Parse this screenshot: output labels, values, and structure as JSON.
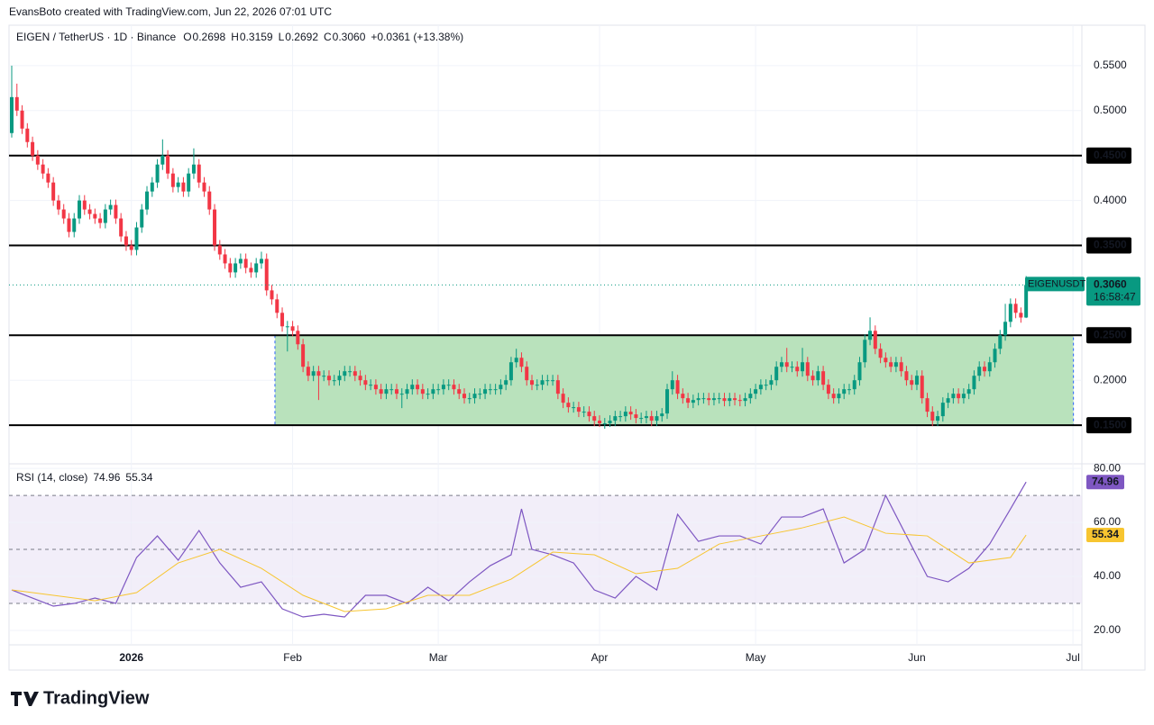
{
  "header": {
    "credit": "EvansBoto created with TradingView.com, Jun 22, 2026 07:01 UTC",
    "brand": "TradingView"
  },
  "chart_data": {
    "type": "candlestick",
    "title": "EIGEN / TetherUS · 1D · Binance",
    "ohlc_legend": [
      {
        "key": "O",
        "value": "0.2698"
      },
      {
        "key": "H",
        "value": "0.3159"
      },
      {
        "key": "L",
        "value": "0.2692"
      },
      {
        "key": "C",
        "value": "0.3060"
      }
    ],
    "change": "+0.0361 (+13.38%)",
    "up_color": "#089981",
    "down_color": "#f23645",
    "xlim": [
      -0.52,
      205.72
    ],
    "xticks": [
      {
        "value": 23,
        "label": "2026"
      },
      {
        "value": 54,
        "label": "Feb"
      },
      {
        "value": 82,
        "label": "Mar"
      },
      {
        "value": 113,
        "label": "Apr"
      },
      {
        "value": 143,
        "label": "May"
      },
      {
        "value": 174,
        "label": "Jun"
      },
      {
        "value": 204,
        "label": "Jul"
      }
    ],
    "ylim": [
      0.107,
      0.595
    ],
    "yticks": [
      {
        "value": 0.55,
        "label": "0.5500"
      },
      {
        "value": 0.5,
        "label": "0.5000"
      },
      {
        "value": 0.4,
        "label": "0.4000"
      },
      {
        "value": 0.2,
        "label": "0.2000"
      }
    ],
    "levels": [
      {
        "value": 0.45,
        "label": "0.4500"
      },
      {
        "value": 0.35,
        "label": "0.3500"
      },
      {
        "value": 0.25,
        "label": "0.2500"
      },
      {
        "value": 0.15,
        "label": "0.1500"
      }
    ],
    "zone": {
      "x": [
        50.6,
        204.1
      ],
      "y": [
        0.15,
        0.25
      ],
      "color": "#b5e0b8"
    },
    "last": {
      "symbol": "EIGENUSDT",
      "price": {
        "value": 0.306,
        "label": "0.3060"
      },
      "countdown": "16:58:47"
    },
    "open": [
      0.475,
      0.515,
      0.5,
      0.48,
      0.465,
      0.45,
      0.44,
      0.43,
      0.42,
      0.4,
      0.39,
      0.38,
      0.365,
      0.38,
      0.4,
      0.39,
      0.385,
      0.38,
      0.375,
      0.39,
      0.395,
      0.38,
      0.36,
      0.35,
      0.345,
      0.37,
      0.39,
      0.41,
      0.42,
      0.44,
      0.45,
      0.43,
      0.415,
      0.42,
      0.41,
      0.43,
      0.44,
      0.42,
      0.41,
      0.39,
      0.35,
      0.34,
      0.33,
      0.32,
      0.33,
      0.335,
      0.325,
      0.32,
      0.33,
      0.335,
      0.3,
      0.29,
      0.275,
      0.26,
      0.26,
      0.255,
      0.24,
      0.215,
      0.205,
      0.21,
      0.205,
      0.205,
      0.2,
      0.2,
      0.205,
      0.21,
      0.21,
      0.205,
      0.2,
      0.195,
      0.195,
      0.19,
      0.185,
      0.19,
      0.19,
      0.185,
      0.185,
      0.19,
      0.195,
      0.19,
      0.185,
      0.185,
      0.19,
      0.19,
      0.195,
      0.195,
      0.19,
      0.185,
      0.18,
      0.18,
      0.185,
      0.185,
      0.19,
      0.19,
      0.19,
      0.195,
      0.2,
      0.22,
      0.225,
      0.215,
      0.2,
      0.195,
      0.195,
      0.2,
      0.2,
      0.2,
      0.185,
      0.175,
      0.17,
      0.17,
      0.165,
      0.165,
      0.16,
      0.155,
      0.152,
      0.152,
      0.155,
      0.16,
      0.16,
      0.165,
      0.162,
      0.158,
      0.158,
      0.16,
      0.155,
      0.16,
      0.163,
      0.19,
      0.2,
      0.185,
      0.18,
      0.175,
      0.178,
      0.18,
      0.18,
      0.178,
      0.18,
      0.18,
      0.177,
      0.18,
      0.178,
      0.177,
      0.18,
      0.185,
      0.19,
      0.195,
      0.195,
      0.2,
      0.215,
      0.22,
      0.215,
      0.215,
      0.21,
      0.22,
      0.205,
      0.2,
      0.21,
      0.195,
      0.185,
      0.18,
      0.185,
      0.19,
      0.19,
      0.2,
      0.22,
      0.245,
      0.255,
      0.235,
      0.225,
      0.22,
      0.215,
      0.22,
      0.21,
      0.2,
      0.195,
      0.205,
      0.18,
      0.165,
      0.155,
      0.16,
      0.175,
      0.18,
      0.185,
      0.18,
      0.185,
      0.19,
      0.205,
      0.215,
      0.21,
      0.22,
      0.235,
      0.25,
      0.265,
      0.285,
      0.275,
      0.2698
    ],
    "high": [
      0.55,
      0.53,
      0.506,
      0.486,
      0.471,
      0.456,
      0.446,
      0.436,
      0.426,
      0.406,
      0.396,
      0.386,
      0.386,
      0.406,
      0.406,
      0.396,
      0.391,
      0.386,
      0.396,
      0.401,
      0.401,
      0.386,
      0.366,
      0.356,
      0.376,
      0.396,
      0.416,
      0.426,
      0.446,
      0.468,
      0.456,
      0.436,
      0.426,
      0.426,
      0.436,
      0.458,
      0.446,
      0.426,
      0.416,
      0.396,
      0.356,
      0.346,
      0.336,
      0.336,
      0.341,
      0.341,
      0.331,
      0.336,
      0.343,
      0.341,
      0.306,
      0.296,
      0.281,
      0.266,
      0.266,
      0.261,
      0.246,
      0.221,
      0.216,
      0.216,
      0.211,
      0.211,
      0.206,
      0.211,
      0.216,
      0.216,
      0.216,
      0.211,
      0.206,
      0.201,
      0.201,
      0.196,
      0.196,
      0.196,
      0.196,
      0.191,
      0.196,
      0.201,
      0.201,
      0.196,
      0.191,
      0.196,
      0.196,
      0.201,
      0.201,
      0.201,
      0.196,
      0.191,
      0.186,
      0.191,
      0.191,
      0.196,
      0.196,
      0.196,
      0.201,
      0.206,
      0.226,
      0.235,
      0.231,
      0.221,
      0.206,
      0.201,
      0.206,
      0.206,
      0.206,
      0.206,
      0.191,
      0.181,
      0.176,
      0.176,
      0.171,
      0.171,
      0.166,
      0.161,
      0.158,
      0.161,
      0.166,
      0.166,
      0.171,
      0.171,
      0.168,
      0.164,
      0.166,
      0.166,
      0.166,
      0.169,
      0.196,
      0.21,
      0.206,
      0.191,
      0.186,
      0.184,
      0.186,
      0.186,
      0.186,
      0.186,
      0.186,
      0.186,
      0.186,
      0.186,
      0.184,
      0.186,
      0.191,
      0.196,
      0.201,
      0.201,
      0.206,
      0.221,
      0.226,
      0.236,
      0.221,
      0.221,
      0.236,
      0.226,
      0.211,
      0.216,
      0.216,
      0.201,
      0.191,
      0.191,
      0.196,
      0.196,
      0.206,
      0.226,
      0.251,
      0.27,
      0.261,
      0.241,
      0.231,
      0.226,
      0.226,
      0.226,
      0.216,
      0.206,
      0.211,
      0.211,
      0.186,
      0.171,
      0.166,
      0.181,
      0.186,
      0.191,
      0.191,
      0.191,
      0.196,
      0.211,
      0.221,
      0.221,
      0.226,
      0.241,
      0.256,
      0.285,
      0.291,
      0.291,
      0.281,
      0.3159
    ],
    "low": [
      0.47,
      0.494,
      0.474,
      0.459,
      0.444,
      0.434,
      0.424,
      0.414,
      0.394,
      0.384,
      0.374,
      0.359,
      0.359,
      0.374,
      0.384,
      0.379,
      0.374,
      0.369,
      0.369,
      0.384,
      0.374,
      0.354,
      0.344,
      0.339,
      0.339,
      0.364,
      0.384,
      0.404,
      0.414,
      0.434,
      0.424,
      0.409,
      0.409,
      0.404,
      0.404,
      0.424,
      0.414,
      0.404,
      0.384,
      0.344,
      0.334,
      0.324,
      0.314,
      0.314,
      0.324,
      0.319,
      0.314,
      0.314,
      0.324,
      0.294,
      0.284,
      0.269,
      0.254,
      0.232,
      0.249,
      0.234,
      0.209,
      0.199,
      0.199,
      0.178,
      0.199,
      0.194,
      0.194,
      0.194,
      0.199,
      0.204,
      0.199,
      0.194,
      0.189,
      0.189,
      0.184,
      0.179,
      0.179,
      0.184,
      0.179,
      0.169,
      0.179,
      0.184,
      0.184,
      0.179,
      0.179,
      0.179,
      0.184,
      0.184,
      0.189,
      0.184,
      0.179,
      0.174,
      0.174,
      0.174,
      0.179,
      0.179,
      0.184,
      0.184,
      0.184,
      0.189,
      0.194,
      0.214,
      0.209,
      0.194,
      0.189,
      0.189,
      0.189,
      0.194,
      0.194,
      0.179,
      0.169,
      0.164,
      0.164,
      0.159,
      0.159,
      0.154,
      0.149,
      0.148,
      0.146,
      0.148,
      0.149,
      0.154,
      0.154,
      0.156,
      0.152,
      0.152,
      0.152,
      0.149,
      0.149,
      0.154,
      0.157,
      0.184,
      0.179,
      0.174,
      0.169,
      0.169,
      0.172,
      0.174,
      0.172,
      0.172,
      0.174,
      0.171,
      0.171,
      0.172,
      0.171,
      0.171,
      0.174,
      0.179,
      0.184,
      0.189,
      0.189,
      0.194,
      0.209,
      0.209,
      0.209,
      0.204,
      0.204,
      0.199,
      0.194,
      0.194,
      0.189,
      0.179,
      0.174,
      0.174,
      0.179,
      0.184,
      0.184,
      0.194,
      0.214,
      0.239,
      0.229,
      0.219,
      0.214,
      0.209,
      0.209,
      0.204,
      0.194,
      0.189,
      0.189,
      0.174,
      0.159,
      0.149,
      0.149,
      0.154,
      0.169,
      0.174,
      0.174,
      0.174,
      0.179,
      0.184,
      0.199,
      0.204,
      0.204,
      0.214,
      0.229,
      0.244,
      0.259,
      0.269,
      0.264,
      0.2692
    ],
    "close": [
      0.515,
      0.5,
      0.48,
      0.465,
      0.45,
      0.44,
      0.43,
      0.42,
      0.4,
      0.39,
      0.38,
      0.365,
      0.38,
      0.4,
      0.39,
      0.385,
      0.38,
      0.375,
      0.39,
      0.395,
      0.38,
      0.36,
      0.35,
      0.345,
      0.37,
      0.39,
      0.41,
      0.42,
      0.44,
      0.45,
      0.43,
      0.415,
      0.42,
      0.41,
      0.43,
      0.44,
      0.42,
      0.41,
      0.39,
      0.35,
      0.34,
      0.33,
      0.32,
      0.33,
      0.335,
      0.325,
      0.32,
      0.33,
      0.335,
      0.3,
      0.29,
      0.275,
      0.26,
      0.26,
      0.255,
      0.24,
      0.215,
      0.205,
      0.21,
      0.205,
      0.205,
      0.2,
      0.2,
      0.205,
      0.21,
      0.21,
      0.205,
      0.2,
      0.195,
      0.195,
      0.19,
      0.185,
      0.19,
      0.19,
      0.185,
      0.185,
      0.19,
      0.195,
      0.19,
      0.185,
      0.185,
      0.19,
      0.19,
      0.195,
      0.195,
      0.19,
      0.185,
      0.18,
      0.18,
      0.185,
      0.185,
      0.19,
      0.19,
      0.19,
      0.195,
      0.2,
      0.22,
      0.225,
      0.215,
      0.2,
      0.195,
      0.195,
      0.2,
      0.2,
      0.2,
      0.185,
      0.175,
      0.17,
      0.17,
      0.165,
      0.165,
      0.16,
      0.155,
      0.152,
      0.152,
      0.155,
      0.16,
      0.16,
      0.165,
      0.162,
      0.158,
      0.158,
      0.16,
      0.155,
      0.16,
      0.163,
      0.19,
      0.2,
      0.185,
      0.18,
      0.175,
      0.178,
      0.18,
      0.18,
      0.178,
      0.18,
      0.18,
      0.177,
      0.18,
      0.178,
      0.177,
      0.18,
      0.185,
      0.19,
      0.195,
      0.195,
      0.2,
      0.215,
      0.22,
      0.215,
      0.215,
      0.21,
      0.22,
      0.205,
      0.2,
      0.21,
      0.195,
      0.185,
      0.18,
      0.185,
      0.19,
      0.19,
      0.2,
      0.22,
      0.245,
      0.255,
      0.235,
      0.225,
      0.22,
      0.215,
      0.22,
      0.21,
      0.2,
      0.195,
      0.205,
      0.18,
      0.165,
      0.155,
      0.16,
      0.175,
      0.18,
      0.185,
      0.18,
      0.185,
      0.19,
      0.205,
      0.215,
      0.21,
      0.22,
      0.235,
      0.25,
      0.265,
      0.285,
      0.275,
      0.2698,
      0.306
    ],
    "rsi": {
      "title": "RSI (14, close)",
      "ylim": [
        15,
        81.7
      ],
      "yticks": [
        {
          "value": 80,
          "label": "80.00"
        },
        {
          "value": 60,
          "label": "60.00"
        },
        {
          "value": 40,
          "label": "40.00"
        },
        {
          "value": 20,
          "label": "20.00"
        }
      ],
      "bands": [
        30,
        50,
        70
      ],
      "band_color": "#ede7f6",
      "series": [
        {
          "color": "#7e57c2",
          "last_label": "74.96",
          "x": [
            0,
            4,
            8,
            12,
            16,
            20,
            24,
            28,
            32,
            36,
            40,
            44,
            48,
            52,
            56,
            60,
            64,
            68,
            72,
            76,
            80,
            84,
            88,
            92,
            96,
            98,
            100,
            104,
            108,
            112,
            116,
            120,
            124,
            128,
            132,
            136,
            140,
            144,
            148,
            152,
            156,
            160,
            164,
            168,
            172,
            176,
            180,
            184,
            188,
            192,
            195
          ],
          "values": [
            35,
            32,
            29,
            30,
            32,
            30,
            47,
            55,
            46,
            57,
            45,
            36,
            38,
            28,
            25,
            26,
            25,
            33,
            33,
            30,
            36,
            31,
            38,
            44,
            48,
            65,
            50,
            48,
            45,
            35,
            32,
            40,
            35,
            63,
            53,
            55,
            55,
            52,
            62,
            62,
            65,
            45,
            50,
            70,
            55,
            40,
            38,
            43,
            52,
            65,
            74.96
          ]
        },
        {
          "color": "#f7c530",
          "last_label": "55.34",
          "x": [
            0,
            8,
            16,
            24,
            32,
            40,
            48,
            56,
            64,
            72,
            80,
            88,
            96,
            104,
            112,
            120,
            128,
            136,
            144,
            152,
            160,
            168,
            176,
            184,
            192,
            195
          ],
          "values": [
            35,
            33,
            31,
            34,
            45,
            50,
            43,
            33,
            27,
            28,
            33,
            33,
            39,
            49,
            48,
            41,
            43,
            52,
            55,
            58,
            62,
            56,
            55,
            45,
            47,
            55.34
          ]
        }
      ]
    }
  }
}
